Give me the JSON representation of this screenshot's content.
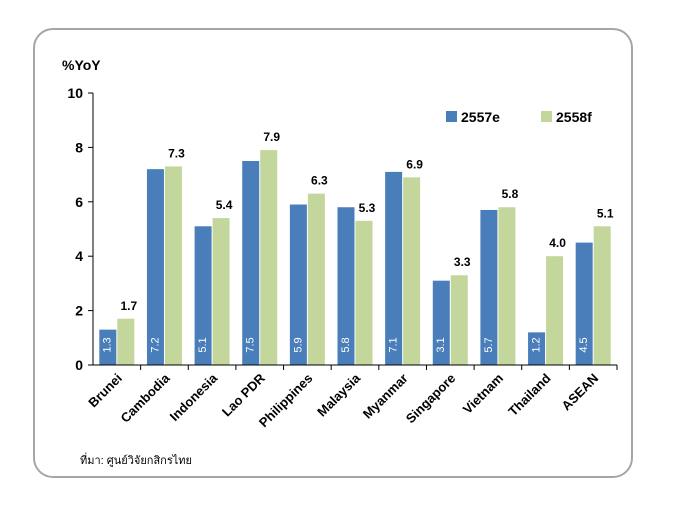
{
  "chart_data": {
    "type": "bar",
    "ylabel": "%YoY",
    "ylim": [
      0,
      10
    ],
    "yticks": [
      0,
      2,
      4,
      6,
      8,
      10
    ],
    "categories": [
      "Brunei",
      "Cambodia",
      "Indonesia",
      "Lao PDR",
      "Philippines",
      "Malaysia",
      "Myanmar",
      "Singapore",
      "Vietnam",
      "Thailand",
      "ASEAN"
    ],
    "series": [
      {
        "name": "2557e",
        "color": "#4a7ebb",
        "values": [
          1.3,
          7.2,
          5.1,
          7.5,
          5.9,
          5.8,
          7.1,
          3.1,
          5.7,
          1.2,
          4.5
        ],
        "labels": [
          "1.3",
          "7.2",
          "5.1",
          "7.5",
          "5.9",
          "5.8",
          "7.1",
          "3.1",
          "5.7",
          "1.2",
          "4.5"
        ]
      },
      {
        "name": "2558f",
        "color": "#c3d69b",
        "values": [
          1.7,
          7.3,
          5.4,
          7.9,
          6.3,
          5.3,
          6.9,
          3.3,
          5.8,
          4.0,
          5.1
        ],
        "labels": [
          "1.7",
          "7.3",
          "5.4",
          "7.9",
          "6.3",
          "5.3",
          "6.9",
          "3.3",
          "5.8",
          "4.0",
          "5.1"
        ]
      }
    ],
    "legend_position": "top-right",
    "grid": false
  },
  "source_note": "ที่มา: ศูนย์วิจัยกสิกรไทย"
}
